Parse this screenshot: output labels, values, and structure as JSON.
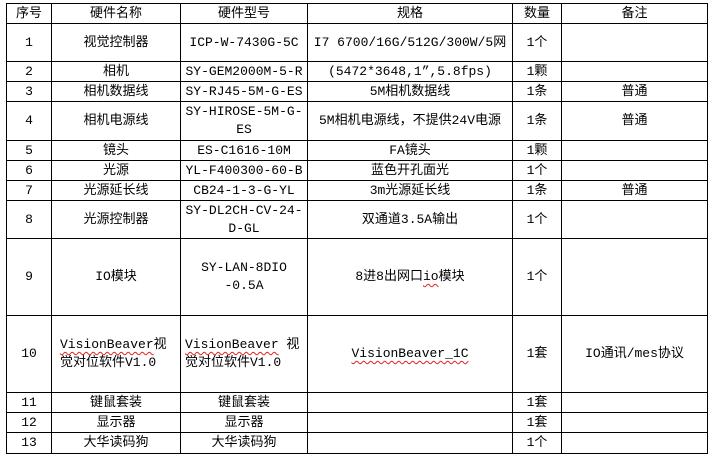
{
  "headers": [
    "序号",
    "硬件名称",
    "硬件型号",
    "规格",
    "数量",
    "备注"
  ],
  "rows": [
    {
      "no": "1",
      "name": "视觉控制器",
      "model": "ICP-W-7430G-5C",
      "spec": "I7 6700/16G/512G/300W/5网",
      "qty": "1个",
      "note": ""
    },
    {
      "no": "2",
      "name": "相机",
      "model": "SY-GEM2000M-5-R",
      "spec": "(5472*3648,1”,5.8fps)",
      "qty": "1颗",
      "note": ""
    },
    {
      "no": "3",
      "name": "相机数据线",
      "model": "SY-RJ45-5M-G-ES",
      "spec": "5M相机数据线",
      "qty": "1条",
      "note": "普通"
    },
    {
      "no": "4",
      "name": "相机电源线",
      "model": "SY-HIROSE-5M-G-ES",
      "spec": "5M相机电源线，不提供24V电源",
      "qty": "1条",
      "note": "普通"
    },
    {
      "no": "5",
      "name": "镜头",
      "model": "ES-C1616-10M",
      "spec": "FA镜头",
      "qty": "1颗",
      "note": ""
    },
    {
      "no": "6",
      "name": "光源",
      "model": "YL-F400300-60-B",
      "spec": "蓝色开孔面光",
      "qty": "1个",
      "note": ""
    },
    {
      "no": "7",
      "name": "光源延长线",
      "model": "CB24-1-3-G-YL",
      "spec": "3m光源延长线",
      "qty": "1条",
      "note": "普通"
    },
    {
      "no": "8",
      "name": "光源控制器",
      "model": "SY-DL2CH-CV-24-D-GL",
      "spec": "双通道3.5A输出",
      "qty": "1个",
      "note": ""
    },
    {
      "no": "9",
      "name": "IO模块",
      "model": "SY-LAN-8DIO-0.5A",
      "spec_pre": "8进8出网口",
      "spec_wavy": "io",
      "spec_post": "模块",
      "qty": "1个",
      "note": ""
    },
    {
      "no": "10",
      "name_wavy": "VisionBeaver",
      "name_post": "视觉对位软件V1.0",
      "model_wavy": "VisionBeaver",
      "model_post": " 视觉对位软件V1.0",
      "spec_wavy": "VisionBeaver_1C",
      "qty": "1套",
      "note": "IO通讯/mes协议"
    },
    {
      "no": "11",
      "name": "键鼠套装",
      "model": "键鼠套装",
      "spec": "",
      "qty": "1套",
      "note": ""
    },
    {
      "no": "12",
      "name": "显示器",
      "model": "显示器",
      "spec": "",
      "qty": "1套",
      "note": ""
    },
    {
      "no": "13",
      "name": "大华读码狗",
      "model": "大华读码狗",
      "spec": "",
      "qty": "1个",
      "note": ""
    }
  ]
}
